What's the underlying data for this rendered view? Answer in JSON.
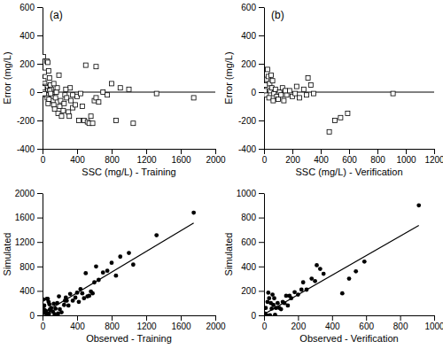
{
  "chart_data": [
    {
      "type": "scatter",
      "title": "(a)",
      "x_label": "SSC (mg/L) - Training",
      "y_label": "Error (mg/L)",
      "xlim": [
        0,
        2000
      ],
      "xticks": [
        0,
        400,
        800,
        1200,
        1600,
        2000
      ],
      "ylim": [
        -400,
        600
      ],
      "yticks": [
        -400,
        -200,
        0,
        200,
        400,
        600
      ],
      "series": [
        {
          "type": "scatter",
          "marker": "square",
          "color": "#000000",
          "x": [
            10,
            20,
            15,
            25,
            30,
            40,
            50,
            60,
            70,
            80,
            35,
            45,
            55,
            20,
            10,
            90,
            100,
            110,
            120,
            130,
            140,
            150,
            160,
            170,
            180,
            200,
            210,
            220,
            240,
            250,
            260,
            280,
            300,
            310,
            320,
            330,
            350,
            380,
            400,
            420,
            440,
            460,
            480,
            500,
            520,
            540,
            560,
            580,
            600,
            620,
            650,
            700,
            750,
            800,
            850,
            900,
            1000,
            1050,
            1320,
            1750,
            65,
            75,
            85,
            95,
            5,
            130,
            190,
            270,
            350,
            620
          ],
          "values": [
            250,
            140,
            80,
            60,
            40,
            30,
            220,
            210,
            150,
            100,
            10,
            -20,
            -40,
            -10,
            20,
            50,
            20,
            -30,
            -60,
            -90,
            -120,
            -40,
            0,
            30,
            -150,
            -100,
            -60,
            -170,
            -130,
            -80,
            -20,
            -40,
            -140,
            -170,
            30,
            -60,
            -110,
            -90,
            -30,
            -200,
            -10,
            -100,
            -200,
            190,
            -210,
            -220,
            -170,
            -220,
            -60,
            -40,
            -70,
            0,
            -20,
            60,
            -200,
            30,
            20,
            -220,
            -10,
            -40,
            -80,
            -50,
            10,
            -10,
            30,
            60,
            120,
            20,
            -20,
            180
          ]
        }
      ]
    },
    {
      "type": "scatter",
      "title": "(b)",
      "x_label": "SSC (mg/L) - Verification",
      "y_label": "Error (mg/L)",
      "xlim": [
        0,
        1200
      ],
      "xticks": [
        0,
        200,
        400,
        600,
        800,
        1000,
        1200
      ],
      "ylim": [
        -400,
        600
      ],
      "yticks": [
        -400,
        -200,
        0,
        200,
        400,
        600
      ],
      "series": [
        {
          "type": "scatter",
          "marker": "square",
          "color": "#000000",
          "x": [
            10,
            20,
            25,
            30,
            40,
            50,
            60,
            15,
            35,
            45,
            55,
            70,
            80,
            90,
            100,
            110,
            120,
            130,
            140,
            160,
            180,
            200,
            220,
            250,
            280,
            300,
            310,
            330,
            350,
            460,
            500,
            540,
            590,
            910,
            5,
            65,
            150,
            230
          ],
          "values": [
            50,
            90,
            160,
            110,
            60,
            120,
            80,
            -20,
            -40,
            10,
            30,
            -10,
            20,
            -30,
            -50,
            0,
            -20,
            30,
            -60,
            -20,
            10,
            -30,
            -10,
            -40,
            20,
            -20,
            100,
            50,
            -10,
            -280,
            -200,
            -180,
            -150,
            -10,
            10,
            -60,
            10,
            40
          ]
        }
      ]
    },
    {
      "type": "scatter",
      "x_label": "Observed - Training",
      "y_label": "Simulated",
      "xlim": [
        0,
        2000
      ],
      "xticks": [
        0,
        400,
        800,
        1200,
        1600,
        2000
      ],
      "ylim": [
        0,
        2000
      ],
      "yticks": [
        0,
        400,
        800,
        1200,
        1600,
        2000
      ],
      "series": [
        {
          "type": "scatter",
          "marker": "circle",
          "color": "#000000",
          "x": [
            10,
            20,
            50,
            60,
            70,
            80,
            30,
            40,
            100,
            120,
            140,
            150,
            170,
            180,
            200,
            220,
            250,
            260,
            280,
            300,
            320,
            350,
            380,
            400,
            420,
            440,
            460,
            480,
            500,
            520,
            540,
            560,
            580,
            600,
            620,
            650,
            700,
            750,
            800,
            850,
            900,
            1000,
            1050,
            1320,
            1750,
            5,
            15,
            25,
            35,
            45,
            55,
            65,
            75,
            85,
            95,
            130,
            190,
            270
          ],
          "values": [
            260,
            160,
            270,
            270,
            220,
            180,
            70,
            70,
            120,
            60,
            20,
            110,
            200,
            30,
            100,
            50,
            170,
            240,
            240,
            160,
            350,
            240,
            290,
            370,
            220,
            430,
            360,
            280,
            690,
            310,
            320,
            390,
            360,
            540,
            800,
            580,
            700,
            730,
            860,
            650,
            960,
            1020,
            830,
            1310,
            1680,
            35,
            95,
            85,
            45,
            25,
            15,
            10,
            30,
            95,
            85,
            190,
            310,
            290
          ]
        },
        {
          "type": "line",
          "line_style": "solid",
          "color": "#000000",
          "x": [
            0,
            1750
          ],
          "values": [
            30,
            1510
          ]
        }
      ]
    },
    {
      "type": "scatter",
      "x_label": "Observed - Verification",
      "y_label": "Simulated",
      "xlim": [
        0,
        1000
      ],
      "xticks": [
        0,
        200,
        400,
        600,
        800,
        1000
      ],
      "ylim": [
        0,
        1000
      ],
      "yticks": [
        0,
        200,
        400,
        600,
        800,
        1000
      ],
      "series": [
        {
          "type": "scatter",
          "marker": "circle",
          "color": "#000000",
          "x": [
            10,
            20,
            25,
            30,
            40,
            50,
            60,
            15,
            35,
            45,
            55,
            70,
            80,
            90,
            100,
            110,
            120,
            130,
            140,
            160,
            180,
            200,
            220,
            250,
            280,
            300,
            310,
            330,
            350,
            460,
            500,
            540,
            590,
            910,
            5,
            65,
            150,
            230
          ],
          "values": [
            60,
            110,
            185,
            140,
            100,
            170,
            140,
            0,
            0,
            55,
            85,
            60,
            100,
            60,
            50,
            110,
            100,
            160,
            80,
            140,
            190,
            170,
            210,
            210,
            300,
            280,
            410,
            380,
            340,
            180,
            300,
            360,
            440,
            900,
            15,
            5,
            160,
            270
          ]
        },
        {
          "type": "line",
          "line_style": "solid",
          "color": "#000000",
          "x": [
            0,
            910
          ],
          "values": [
            10,
            735
          ]
        }
      ]
    }
  ]
}
